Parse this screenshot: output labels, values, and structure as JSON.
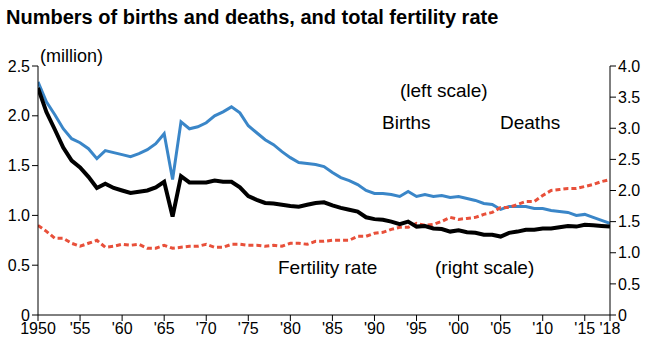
{
  "chart_data": {
    "type": "line",
    "title": "Numbers of births and deaths, and total fertility rate",
    "y_label": "(million)",
    "annotations": [
      "(left scale)",
      "Births",
      "Deaths",
      "Fertility rate",
      "(right scale)"
    ],
    "x": [
      1950,
      1951,
      1952,
      1953,
      1954,
      1955,
      1956,
      1957,
      1958,
      1959,
      1960,
      1961,
      1962,
      1963,
      1964,
      1965,
      1966,
      1967,
      1968,
      1969,
      1970,
      1971,
      1972,
      1973,
      1974,
      1975,
      1976,
      1977,
      1978,
      1979,
      1980,
      1981,
      1982,
      1983,
      1984,
      1985,
      1986,
      1987,
      1988,
      1989,
      1990,
      1991,
      1992,
      1993,
      1994,
      1995,
      1996,
      1997,
      1998,
      1999,
      2000,
      2001,
      2002,
      2003,
      2004,
      2005,
      2006,
      2007,
      2008,
      2009,
      2010,
      2011,
      2012,
      2013,
      2014,
      2015,
      2016,
      2017,
      2018
    ],
    "series": [
      {
        "name": "Births",
        "color": "#3a86c8",
        "line_style": "solid",
        "values": [
          2.34,
          2.14,
          2.01,
          1.87,
          1.77,
          1.73,
          1.67,
          1.57,
          1.65,
          1.63,
          1.61,
          1.59,
          1.62,
          1.66,
          1.72,
          1.82,
          1.36,
          1.94,
          1.87,
          1.89,
          1.93,
          2.0,
          2.04,
          2.09,
          2.03,
          1.9,
          1.83,
          1.76,
          1.71,
          1.64,
          1.58,
          1.53,
          1.52,
          1.51,
          1.49,
          1.43,
          1.38,
          1.35,
          1.31,
          1.25,
          1.22,
          1.22,
          1.21,
          1.19,
          1.24,
          1.19,
          1.21,
          1.19,
          1.2,
          1.18,
          1.19,
          1.17,
          1.15,
          1.12,
          1.11,
          1.06,
          1.09,
          1.09,
          1.09,
          1.07,
          1.07,
          1.05,
          1.04,
          1.03,
          1.0,
          1.01,
          0.98,
          0.95,
          0.92
        ]
      },
      {
        "name": "Deaths",
        "color": "#e8503a",
        "line_style": "dashed",
        "values": [
          0.9,
          0.84,
          0.77,
          0.77,
          0.72,
          0.69,
          0.72,
          0.75,
          0.68,
          0.69,
          0.71,
          0.7,
          0.71,
          0.67,
          0.67,
          0.7,
          0.67,
          0.68,
          0.69,
          0.69,
          0.71,
          0.68,
          0.68,
          0.71,
          0.71,
          0.7,
          0.7,
          0.69,
          0.7,
          0.69,
          0.72,
          0.72,
          0.71,
          0.74,
          0.74,
          0.75,
          0.75,
          0.75,
          0.79,
          0.79,
          0.82,
          0.83,
          0.86,
          0.88,
          0.88,
          0.92,
          0.9,
          0.91,
          0.94,
          0.98,
          0.96,
          0.97,
          0.98,
          1.01,
          1.03,
          1.08,
          1.08,
          1.11,
          1.14,
          1.14,
          1.2,
          1.25,
          1.26,
          1.27,
          1.27,
          1.29,
          1.31,
          1.34,
          1.36
        ]
      },
      {
        "name": "Fertility rate",
        "color": "#000000",
        "line_style": "solid",
        "axis": "y2",
        "values": [
          3.65,
          3.26,
          2.98,
          2.69,
          2.48,
          2.37,
          2.22,
          2.04,
          2.11,
          2.04,
          2.0,
          1.96,
          1.98,
          2.0,
          2.05,
          2.14,
          1.58,
          2.23,
          2.13,
          2.13,
          2.13,
          2.16,
          2.14,
          2.14,
          2.05,
          1.91,
          1.85,
          1.8,
          1.79,
          1.77,
          1.75,
          1.74,
          1.77,
          1.8,
          1.81,
          1.76,
          1.72,
          1.69,
          1.66,
          1.57,
          1.54,
          1.53,
          1.5,
          1.46,
          1.5,
          1.42,
          1.43,
          1.39,
          1.38,
          1.34,
          1.36,
          1.33,
          1.32,
          1.29,
          1.29,
          1.26,
          1.32,
          1.34,
          1.37,
          1.37,
          1.39,
          1.39,
          1.41,
          1.43,
          1.42,
          1.45,
          1.44,
          1.43,
          1.42
        ]
      }
    ],
    "xlim": [
      1950,
      2018
    ],
    "xticks": [
      1950,
      {
        "value": 1955,
        "label": "'55"
      },
      {
        "value": 1960,
        "label": "'60"
      },
      {
        "value": 1965,
        "label": "'65"
      },
      {
        "value": 1970,
        "label": "'70"
      },
      {
        "value": 1975,
        "label": "'75"
      },
      {
        "value": 1980,
        "label": "'80"
      },
      {
        "value": 1985,
        "label": "'85"
      },
      {
        "value": 1990,
        "label": "'90"
      },
      {
        "value": 1995,
        "label": "'95"
      },
      {
        "value": 2000,
        "label": "'00"
      },
      {
        "value": 2005,
        "label": "'05"
      },
      {
        "value": 2010,
        "label": "'10"
      },
      {
        "value": 2015,
        "label": "'15"
      },
      {
        "value": 2018,
        "label": "'18"
      }
    ],
    "ylim": [
      0,
      2.5
    ],
    "yticks": [
      0,
      0.5,
      {
        "value": 1,
        "label": "1.0"
      },
      1.5,
      {
        "value": 2,
        "label": "2.0"
      },
      2.5
    ],
    "y2lim": [
      0,
      4
    ],
    "y2ticks": [
      0,
      0.5,
      {
        "value": 1,
        "label": "1.0"
      },
      1.5,
      {
        "value": 2,
        "label": "2.0"
      },
      2.5,
      {
        "value": 3,
        "label": "3.0"
      },
      3.5,
      {
        "value": 4,
        "label": "4.0"
      }
    ],
    "grid": false
  }
}
